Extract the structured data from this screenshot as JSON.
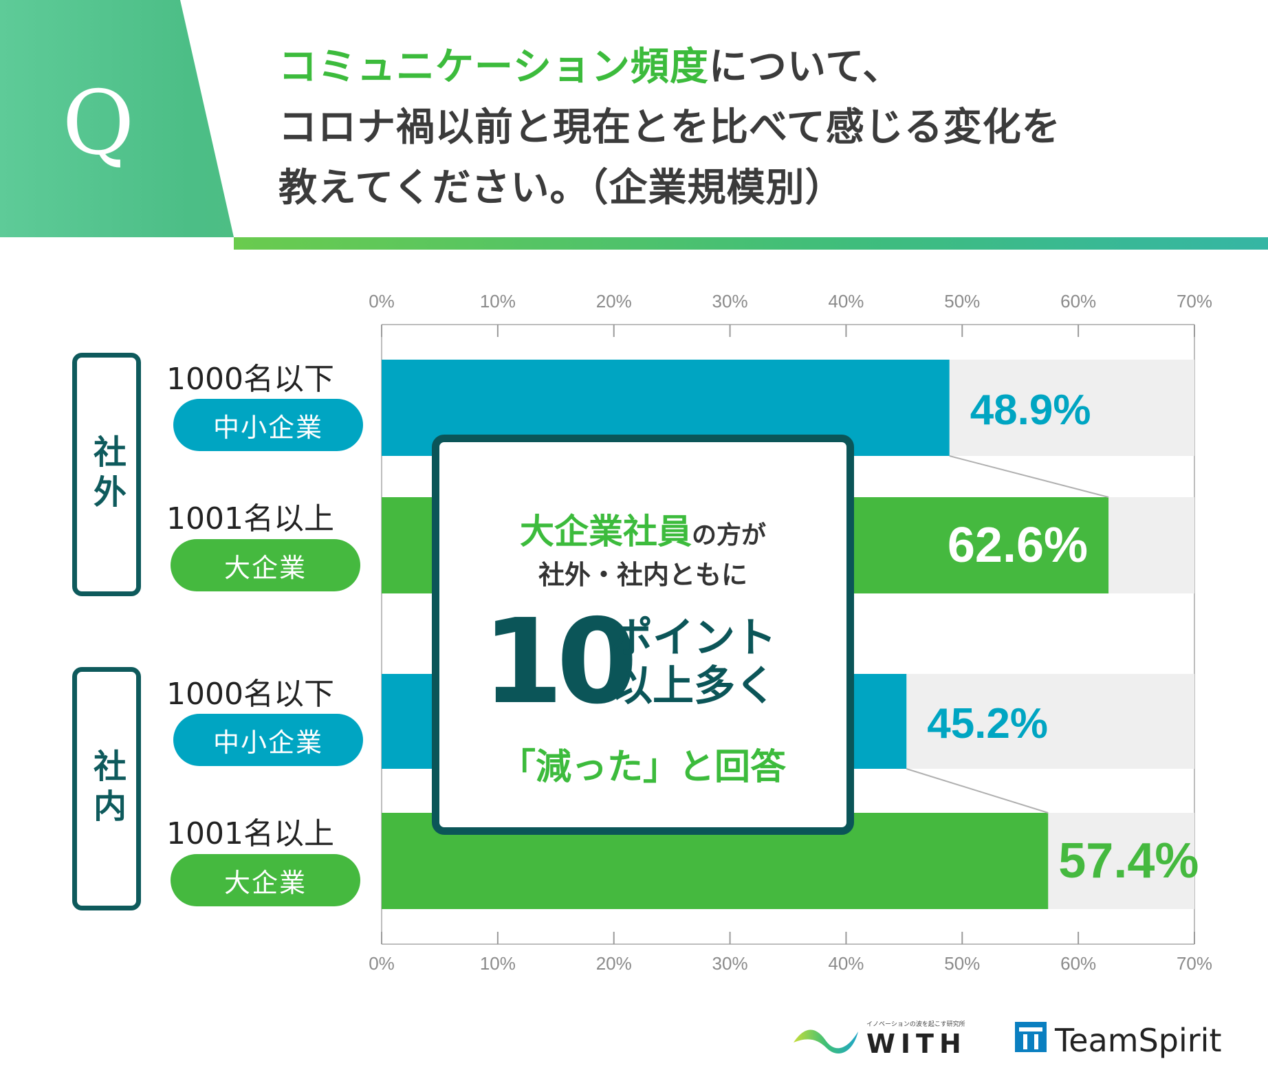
{
  "header": {
    "q_letter": "Q",
    "title_line1_highlight": "コミュニケーション頻度",
    "title_line1_rest": "について、",
    "title_line2": "コロナ禍以前と現在とを比べて感じる変化を",
    "title_line3": "教えてください。（企業規模別）"
  },
  "groups": [
    {
      "label": "社外",
      "rows": [
        {
          "size_label": "1000名以下",
          "pill": "中小企業",
          "value_label": "48.9%"
        },
        {
          "size_label": "1001名以上",
          "pill": "大企業",
          "value_label": "62.6%"
        }
      ]
    },
    {
      "label": "社内",
      "rows": [
        {
          "size_label": "1000名以下",
          "pill": "中小企業",
          "value_label": "45.2%"
        },
        {
          "size_label": "1001名以上",
          "pill": "大企業",
          "value_label": "57.4%"
        }
      ]
    }
  ],
  "callout": {
    "line1_highlight": "大企業社員",
    "line1_rest": "の方が",
    "line2": "社外・社内ともに",
    "big_number": "10",
    "side_line1": "ポイント",
    "side_line2": "以上多く",
    "line4": "「減った」と回答"
  },
  "chart_data": {
    "type": "bar",
    "orientation": "horizontal",
    "xlim": [
      0,
      70
    ],
    "ticks": [
      "0%",
      "10%",
      "20%",
      "30%",
      "40%",
      "50%",
      "60%",
      "70%"
    ],
    "bars": [
      {
        "group": "社外",
        "category": "中小企業",
        "value": 48.9,
        "color": "#00a5c2"
      },
      {
        "group": "社外",
        "category": "大企業",
        "value": 62.6,
        "color": "#45b93f"
      },
      {
        "group": "社内",
        "category": "中小企業",
        "value": 45.2,
        "color": "#00a5c2"
      },
      {
        "group": "社内",
        "category": "大企業",
        "value": 57.4,
        "color": "#45b93f"
      }
    ]
  },
  "colors": {
    "small_company": "#00a5c2",
    "large_company": "#45b93f",
    "track": "#efefef",
    "dark_teal": "#0b5558",
    "accent_green": "#3cbb3c"
  },
  "footer": {
    "with_tagline": "イノベーションの波を起こす研究所",
    "with_name": "WITH",
    "teamspirit_name": "TeamSpirit"
  }
}
